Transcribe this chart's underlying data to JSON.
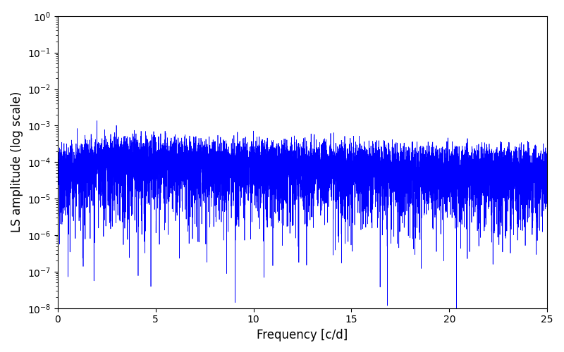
{
  "title": "",
  "xlabel": "Frequency [c/d]",
  "ylabel": "LS amplitude (log scale)",
  "xlim": [
    0,
    25
  ],
  "ylim": [
    1e-08,
    1
  ],
  "line_color": "#0000ff",
  "linewidth": 0.5,
  "figsize": [
    8.0,
    5.0
  ],
  "dpi": 100,
  "freq_min": 0.001,
  "freq_max": 25.0,
  "n_points": 8000,
  "seed": 12345,
  "background_color": "#ffffff"
}
